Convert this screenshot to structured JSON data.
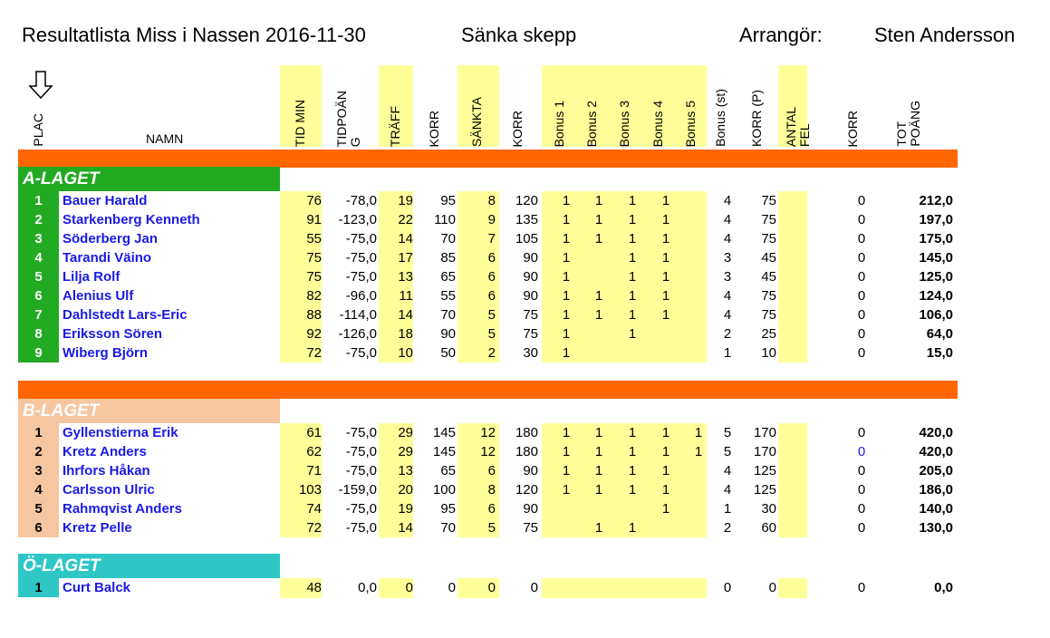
{
  "header": {
    "title": "Resultatlista Miss i Nassen 2016-11-30",
    "event": "Sänka skepp",
    "organizer_label": "Arrangör:",
    "organizer_name": "Sten Andersson"
  },
  "columns": {
    "plac": "PLAC",
    "namn": "NAMN",
    "tid_min": "TID MIN",
    "tidpoang": "TIDPOÄN\nG",
    "traff": "TRÄFF",
    "korr1": "KORR",
    "sankta": "SÄNKTA",
    "korr2": "KORR",
    "bonus1": "Bonus 1",
    "bonus2": "Bonus 2",
    "bonus3": "Bonus 3",
    "bonus4": "Bonus 4",
    "bonus5": "Bonus 5",
    "bonus_st": "Bonus (st)",
    "korr_p": "KORR (P)",
    "antal_fel": "ANTAL\nFEL",
    "korr3": "KORR",
    "tot_poang": "TOT\nPOÄNG"
  },
  "teams": [
    {
      "label": "A-LAGET",
      "rows": [
        {
          "place": "1",
          "name": "Bauer Harald",
          "tid": "76",
          "tidp": "-78,0",
          "traff": "19",
          "korr1": "95",
          "sankta": "8",
          "korr2": "120",
          "b1": "1",
          "b2": "1",
          "b3": "1",
          "b4": "1",
          "b5": "",
          "bst": "4",
          "korrp": "75",
          "fel": "",
          "korr3": "0",
          "tot": "212,0"
        },
        {
          "place": "2",
          "name": "Starkenberg Kenneth",
          "tid": "91",
          "tidp": "-123,0",
          "traff": "22",
          "korr1": "110",
          "sankta": "9",
          "korr2": "135",
          "b1": "1",
          "b2": "1",
          "b3": "1",
          "b4": "1",
          "b5": "",
          "bst": "4",
          "korrp": "75",
          "fel": "",
          "korr3": "0",
          "tot": "197,0"
        },
        {
          "place": "3",
          "name": "Söderberg Jan",
          "tid": "55",
          "tidp": "-75,0",
          "traff": "14",
          "korr1": "70",
          "sankta": "7",
          "korr2": "105",
          "b1": "1",
          "b2": "1",
          "b3": "1",
          "b4": "1",
          "b5": "",
          "bst": "4",
          "korrp": "75",
          "fel": "",
          "korr3": "0",
          "tot": "175,0"
        },
        {
          "place": "4",
          "name": "Tarandi Väino",
          "tid": "75",
          "tidp": "-75,0",
          "traff": "17",
          "korr1": "85",
          "sankta": "6",
          "korr2": "90",
          "b1": "1",
          "b2": "",
          "b3": "1",
          "b4": "1",
          "b5": "",
          "bst": "3",
          "korrp": "45",
          "fel": "",
          "korr3": "0",
          "tot": "145,0"
        },
        {
          "place": "5",
          "name": "Lilja Rolf",
          "tid": "75",
          "tidp": "-75,0",
          "traff": "13",
          "korr1": "65",
          "sankta": "6",
          "korr2": "90",
          "b1": "1",
          "b2": "",
          "b3": "1",
          "b4": "1",
          "b5": "",
          "bst": "3",
          "korrp": "45",
          "fel": "",
          "korr3": "0",
          "tot": "125,0"
        },
        {
          "place": "6",
          "name": "Alenius Ulf",
          "tid": "82",
          "tidp": "-96,0",
          "traff": "11",
          "korr1": "55",
          "sankta": "6",
          "korr2": "90",
          "b1": "1",
          "b2": "1",
          "b3": "1",
          "b4": "1",
          "b5": "",
          "bst": "4",
          "korrp": "75",
          "fel": "",
          "korr3": "0",
          "tot": "124,0"
        },
        {
          "place": "7",
          "name": "Dahlstedt Lars-Eric",
          "tid": "88",
          "tidp": "-114,0",
          "traff": "14",
          "korr1": "70",
          "sankta": "5",
          "korr2": "75",
          "b1": "1",
          "b2": "1",
          "b3": "1",
          "b4": "1",
          "b5": "",
          "bst": "4",
          "korrp": "75",
          "fel": "",
          "korr3": "0",
          "tot": "106,0"
        },
        {
          "place": "8",
          "name": "Eriksson Sören",
          "tid": "92",
          "tidp": "-126,0",
          "traff": "18",
          "korr1": "90",
          "sankta": "5",
          "korr2": "75",
          "b1": "1",
          "b2": "",
          "b3": "1",
          "b4": "",
          "b5": "",
          "bst": "2",
          "korrp": "25",
          "fel": "",
          "korr3": "0",
          "tot": "64,0"
        },
        {
          "place": "9",
          "name": "Wiberg Björn",
          "tid": "72",
          "tidp": "-75,0",
          "traff": "10",
          "korr1": "50",
          "sankta": "2",
          "korr2": "30",
          "b1": "1",
          "b2": "",
          "b3": "",
          "b4": "",
          "b5": "",
          "bst": "1",
          "korrp": "10",
          "fel": "",
          "korr3": "0",
          "tot": "15,0"
        }
      ]
    },
    {
      "label": "B-LAGET",
      "rows": [
        {
          "place": "1",
          "name": "Gyllenstierna Erik",
          "tid": "61",
          "tidp": "-75,0",
          "traff": "29",
          "korr1": "145",
          "sankta": "12",
          "korr2": "180",
          "b1": "1",
          "b2": "1",
          "b3": "1",
          "b4": "1",
          "b5": "1",
          "bst": "5",
          "korrp": "170",
          "fel": "",
          "korr3": "0",
          "tot": "420,0"
        },
        {
          "place": "2",
          "name": "Kretz Anders",
          "tid": "62",
          "tidp": "-75,0",
          "traff": "29",
          "korr1": "145",
          "sankta": "12",
          "korr2": "180",
          "b1": "1",
          "b2": "1",
          "b3": "1",
          "b4": "1",
          "b5": "1",
          "bst": "5",
          "korrp": "170",
          "fel": "",
          "korr3": "0",
          "tot": "420,0"
        },
        {
          "place": "3",
          "name": "Ihrfors Håkan",
          "tid": "71",
          "tidp": "-75,0",
          "traff": "13",
          "korr1": "65",
          "sankta": "6",
          "korr2": "90",
          "b1": "1",
          "b2": "1",
          "b3": "1",
          "b4": "1",
          "b5": "",
          "bst": "4",
          "korrp": "125",
          "fel": "",
          "korr3": "0",
          "tot": "205,0"
        },
        {
          "place": "4",
          "name": "Carlsson Ulric",
          "tid": "103",
          "tidp": "-159,0",
          "traff": "20",
          "korr1": "100",
          "sankta": "8",
          "korr2": "120",
          "b1": "1",
          "b2": "1",
          "b3": "1",
          "b4": "1",
          "b5": "",
          "bst": "4",
          "korrp": "125",
          "fel": "",
          "korr3": "0",
          "tot": "186,0"
        },
        {
          "place": "5",
          "name": "Rahmqvist Anders",
          "tid": "74",
          "tidp": "-75,0",
          "traff": "19",
          "korr1": "95",
          "sankta": "6",
          "korr2": "90",
          "b1": "",
          "b2": "",
          "b3": "",
          "b4": "1",
          "b5": "",
          "bst": "1",
          "korrp": "30",
          "fel": "",
          "korr3": "0",
          "tot": "140,0"
        },
        {
          "place": "6",
          "name": "Kretz Pelle",
          "tid": "72",
          "tidp": "-75,0",
          "traff": "14",
          "korr1": "70",
          "sankta": "5",
          "korr2": "75",
          "b1": "",
          "b2": "1",
          "b3": "1",
          "b4": "",
          "b5": "",
          "bst": "2",
          "korrp": "60",
          "fel": "",
          "korr3": "0",
          "tot": "130,0"
        }
      ]
    },
    {
      "label": "Ö-LAGET",
      "rows": [
        {
          "place": "1",
          "name": "Curt Balck",
          "tid": "48",
          "tidp": "0,0",
          "traff": "0",
          "korr1": "0",
          "sankta": "0",
          "korr2": "0",
          "b1": "",
          "b2": "",
          "b3": "",
          "b4": "",
          "b5": "",
          "bst": "0",
          "korrp": "0",
          "fel": "",
          "korr3": "0",
          "tot": "0,0"
        }
      ]
    }
  ]
}
